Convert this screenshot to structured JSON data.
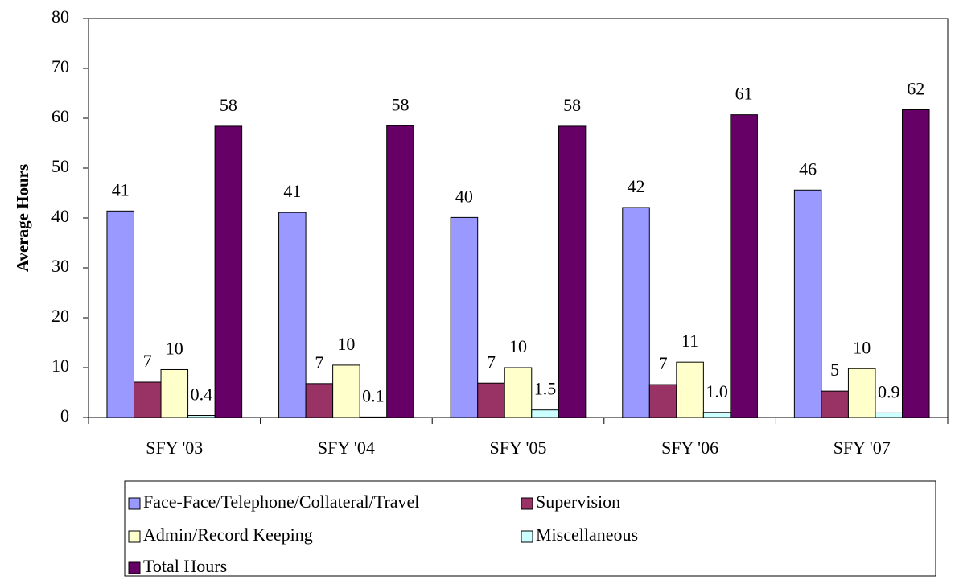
{
  "chart_data": {
    "type": "bar",
    "ylabel": "Average Hours",
    "categories": [
      "SFY '03",
      "SFY '04",
      "SFY '05",
      "SFY '06",
      "SFY '07"
    ],
    "series": [
      {
        "name": "Face-Face/Telephone/Collateral/Travel",
        "color": "#9999ff",
        "values": [
          41.4,
          41.1,
          40.1,
          42.1,
          45.6
        ],
        "value_labels": [
          "41",
          "41",
          "40",
          "42",
          "46"
        ]
      },
      {
        "name": "Supervision",
        "color": "#993366",
        "values": [
          7.1,
          6.8,
          6.9,
          6.6,
          5.3
        ],
        "value_labels": [
          "7",
          "7",
          "7",
          "7",
          "5"
        ]
      },
      {
        "name": "Admin/Record Keeping",
        "color": "#ffffcc",
        "values": [
          9.6,
          10.5,
          10.0,
          11.1,
          9.8
        ],
        "value_labels": [
          "10",
          "10",
          "10",
          "11",
          "10"
        ]
      },
      {
        "name": "Miscellaneous",
        "color": "#ccffff",
        "values": [
          0.4,
          0.1,
          1.5,
          1.0,
          0.9
        ],
        "value_labels": [
          "0.4",
          "0.1",
          "1.5",
          "1.0",
          "0.9"
        ]
      },
      {
        "name": "Total Hours",
        "color": "#660066",
        "values": [
          58.4,
          58.5,
          58.4,
          60.7,
          61.7
        ],
        "value_labels": [
          "58",
          "58",
          "58",
          "61",
          "62"
        ]
      }
    ],
    "ylim": [
      0,
      80
    ],
    "yticks": [
      0,
      10,
      20,
      30,
      40,
      50,
      60,
      70,
      80
    ],
    "grid": false,
    "legend": "bottom"
  }
}
